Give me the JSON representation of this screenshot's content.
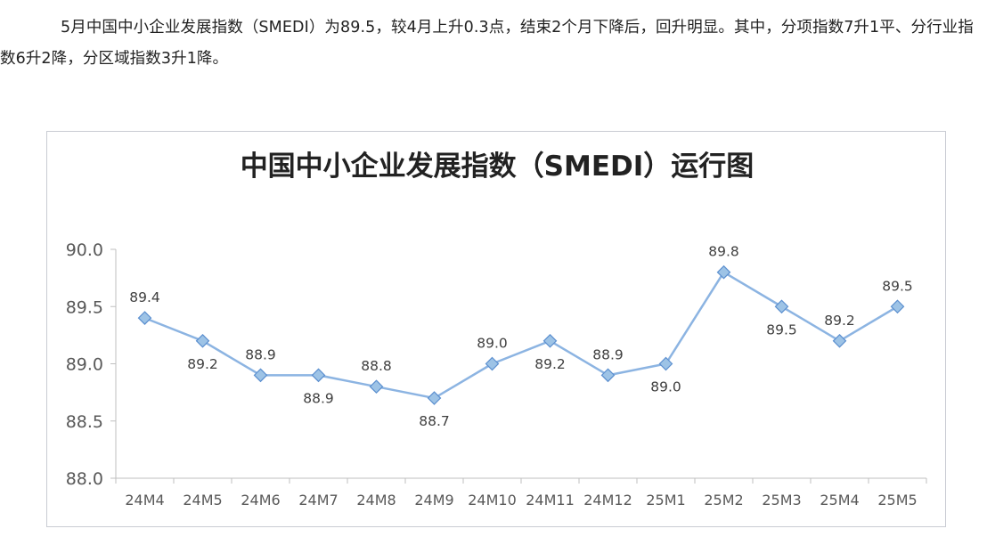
{
  "article": {
    "paragraph": "5月中国中小企业发展指数（SMEDI）为89.5，较4月上升0.3点，结束2个月下降后，回升明显。其中，分项指数7升1平、分行业指数6升2降，分区域指数3升1降。"
  },
  "chart_data": {
    "type": "line",
    "title": "中国中小企业发展指数（SMEDI）运行图",
    "xlabel": "",
    "ylabel": "",
    "categories": [
      "24M4",
      "24M5",
      "24M6",
      "24M7",
      "24M8",
      "24M9",
      "24M10",
      "24M11",
      "24M12",
      "25M1",
      "25M2",
      "25M3",
      "25M4",
      "25M5"
    ],
    "series": [
      {
        "values": [
          89.4,
          89.2,
          88.9,
          88.9,
          88.8,
          88.7,
          89.0,
          89.2,
          88.9,
          89.0,
          89.8,
          89.5,
          89.2,
          89.5
        ]
      }
    ],
    "data_labels": [
      "89.4",
      "89.2",
      "88.9",
      "88.9",
      "88.8",
      "88.7",
      "89.0",
      "89.2",
      "88.9",
      "89.0",
      "89.8",
      "89.5",
      "89.2",
      "89.5"
    ],
    "label_positions": [
      "above",
      "below",
      "above",
      "below",
      "above",
      "below",
      "above",
      "below",
      "above",
      "below",
      "above",
      "below",
      "above",
      "above"
    ],
    "ylim": [
      88.0,
      90.0
    ],
    "yticks": [
      "88.0",
      "88.5",
      "89.0",
      "89.5",
      "90.0"
    ],
    "grid": false,
    "legend": "none",
    "colors": {
      "line": "#8cb4e2",
      "marker_fill": "#9dc3e6",
      "marker_stroke": "#5b8fcf",
      "axis": "#bfbfbf"
    }
  }
}
